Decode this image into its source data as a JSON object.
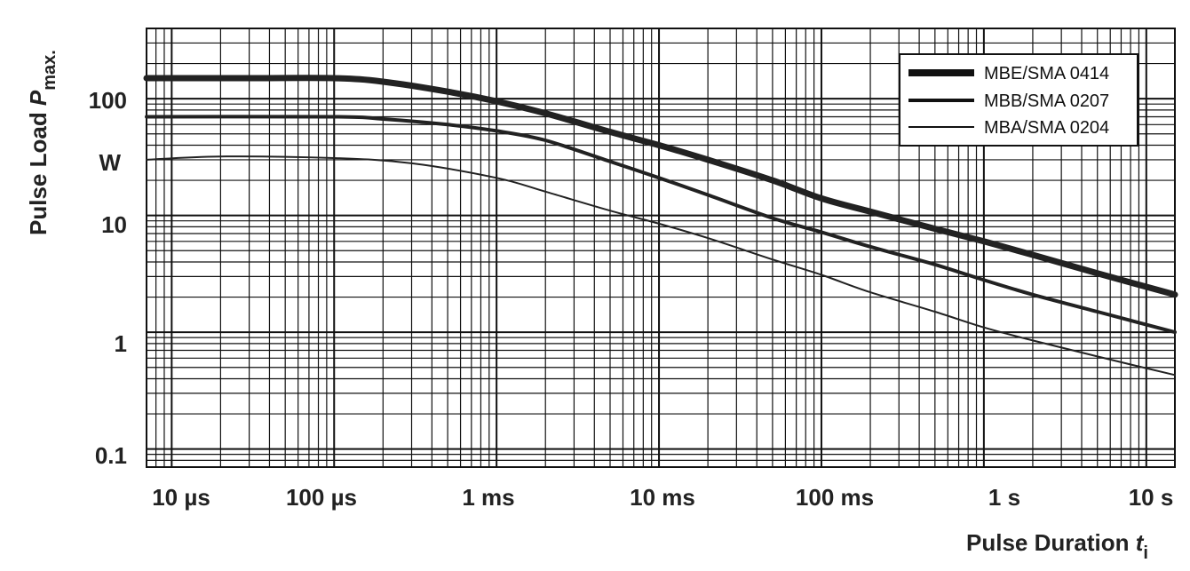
{
  "chart_data": {
    "type": "line",
    "x_scale": "log",
    "y_scale": "log",
    "xlim": [
      "7 µs",
      "15 s"
    ],
    "ylim": [
      0.07,
      400
    ],
    "grid": true,
    "legend_position": "top-right",
    "x_ticks": [
      {
        "label": "10 µs",
        "seconds": 1e-05
      },
      {
        "label": "100 µs",
        "seconds": 0.0001
      },
      {
        "label": "1 ms",
        "seconds": 0.001
      },
      {
        "label": "10 ms",
        "seconds": 0.01
      },
      {
        "label": "100 ms",
        "seconds": 0.1
      },
      {
        "label": "1 s",
        "seconds": 1
      },
      {
        "label": "10 s",
        "seconds": 10
      }
    ],
    "y_ticks": [
      {
        "label": "0.1",
        "value": 0.1
      },
      {
        "label": "1",
        "value": 1
      },
      {
        "label": "10",
        "value": 10
      },
      {
        "label": "100",
        "value": 100
      }
    ],
    "y_unit": "W",
    "ylabel": {
      "main": "Pulse Load ",
      "var": "P",
      "sub": "max."
    },
    "xlabel": {
      "main": "Pulse Duration ",
      "var": "t",
      "sub": "i"
    },
    "series": [
      {
        "name": "MBE/SMA 0414",
        "weight": "thick",
        "points": [
          [
            7e-06,
            150
          ],
          [
            3e-05,
            150
          ],
          [
            0.0001,
            150
          ],
          [
            0.0002,
            140
          ],
          [
            0.0005,
            115
          ],
          [
            0.001,
            95
          ],
          [
            0.002,
            75
          ],
          [
            0.005,
            52
          ],
          [
            0.01,
            40
          ],
          [
            0.02,
            30
          ],
          [
            0.05,
            20
          ],
          [
            0.1,
            14
          ],
          [
            0.2,
            10.8
          ],
          [
            0.5,
            7.7
          ],
          [
            1,
            6
          ],
          [
            2,
            4.6
          ],
          [
            5,
            3.2
          ],
          [
            15,
            2.1
          ]
        ]
      },
      {
        "name": "MBB/SMA 0207",
        "weight": "medium",
        "points": [
          [
            7e-06,
            70
          ],
          [
            0.0001,
            70
          ],
          [
            0.0002,
            67
          ],
          [
            0.0005,
            60
          ],
          [
            0.001,
            53
          ],
          [
            0.002,
            44
          ],
          [
            0.005,
            29
          ],
          [
            0.01,
            21
          ],
          [
            0.02,
            15
          ],
          [
            0.05,
            9.5
          ],
          [
            0.1,
            7.2
          ],
          [
            0.2,
            5.4
          ],
          [
            0.5,
            3.8
          ],
          [
            1,
            2.8
          ],
          [
            2,
            2.1
          ],
          [
            5,
            1.5
          ],
          [
            15,
            1.0
          ]
        ]
      },
      {
        "name": "MBA/SMA 0204",
        "weight": "thin",
        "points": [
          [
            7e-06,
            30
          ],
          [
            2e-05,
            32
          ],
          [
            0.0001,
            31
          ],
          [
            0.0003,
            28
          ],
          [
            0.001,
            21
          ],
          [
            0.002,
            16
          ],
          [
            0.005,
            11
          ],
          [
            0.01,
            8.5
          ],
          [
            0.02,
            6.4
          ],
          [
            0.05,
            4.2
          ],
          [
            0.1,
            3.1
          ],
          [
            0.2,
            2.2
          ],
          [
            0.5,
            1.5
          ],
          [
            1,
            1.1
          ],
          [
            2,
            0.85
          ],
          [
            5,
            0.62
          ],
          [
            15,
            0.43
          ]
        ]
      }
    ]
  }
}
